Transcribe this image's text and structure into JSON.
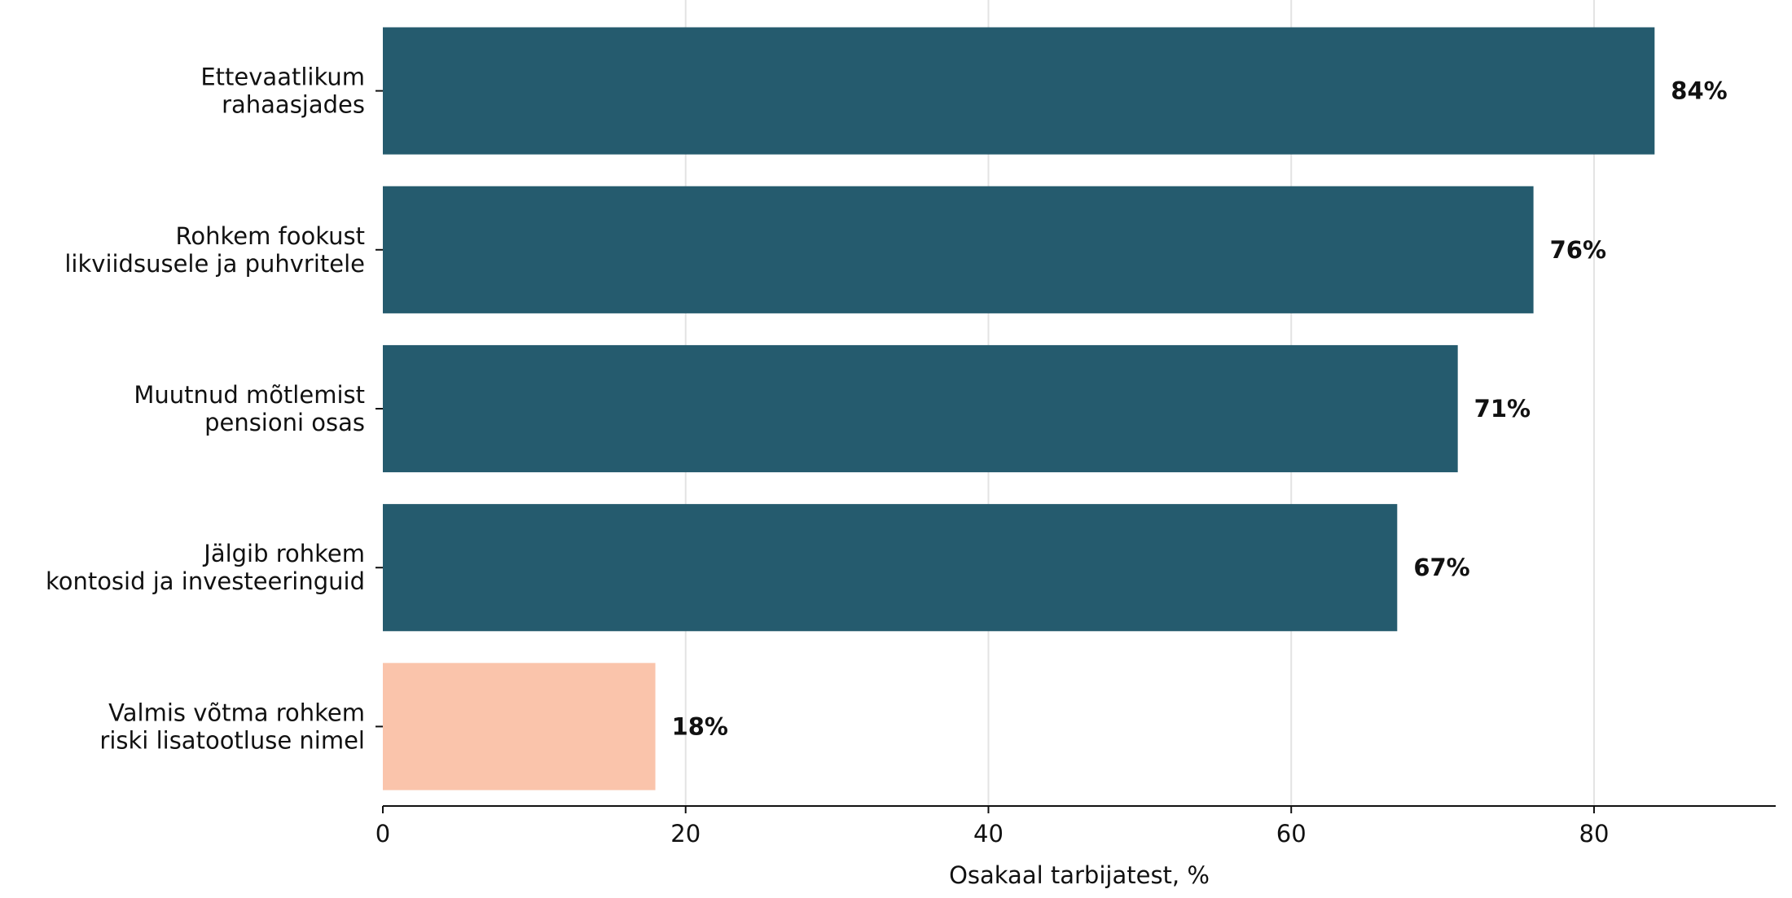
{
  "chart_data": {
    "type": "bar",
    "orientation": "horizontal",
    "categories": [
      [
        "Ettevaatlikum",
        "rahaasjades"
      ],
      [
        "Rohkem fookust",
        "likviidsusele ja puhvritele"
      ],
      [
        "Muutnud mõtlemist",
        "pensioni osas"
      ],
      [
        "Jälgib rohkem",
        "kontosid ja investeeringuid"
      ],
      [
        "Valmis võtma rohkem",
        "riski lisatootluse nimel"
      ]
    ],
    "values": [
      84,
      76,
      71,
      67,
      18
    ],
    "value_labels": [
      "84%",
      "76%",
      "71%",
      "67%",
      "18%"
    ],
    "bar_colors": [
      "#255b6e",
      "#255b6e",
      "#255b6e",
      "#255b6e",
      "#fac4ab"
    ],
    "xlabel": "Osakaal tarbijatest, %",
    "xlim": [
      0,
      92
    ],
    "xticks": [
      0,
      20,
      40,
      60,
      80
    ],
    "xtick_labels": [
      "0",
      "20",
      "40",
      "60",
      "80"
    ],
    "grid": "vertical",
    "grid_color": "#e3e3e3"
  }
}
